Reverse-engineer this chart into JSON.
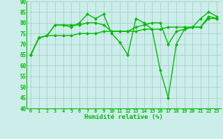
{
  "xlabel": "Humidité relative (%)",
  "ylabel": "",
  "xlim": [
    -0.5,
    23.5
  ],
  "ylim": [
    40,
    90
  ],
  "yticks": [
    40,
    45,
    50,
    55,
    60,
    65,
    70,
    75,
    80,
    85,
    90
  ],
  "xticks": [
    0,
    1,
    2,
    3,
    4,
    5,
    6,
    7,
    8,
    9,
    10,
    11,
    12,
    13,
    14,
    15,
    16,
    17,
    18,
    19,
    20,
    21,
    22,
    23
  ],
  "background_color": "#cceeea",
  "grid_color": "#aacccc",
  "line_color": "#00bb00",
  "line_width": 1.0,
  "marker": "D",
  "marker_size": 2.0,
  "series": [
    [
      65,
      73,
      74,
      79,
      79,
      78,
      80,
      84,
      82,
      84,
      75,
      71,
      65,
      82,
      80,
      77,
      58,
      45,
      70,
      77,
      78,
      82,
      85,
      83
    ],
    [
      65,
      73,
      74,
      79,
      79,
      79,
      79,
      80,
      80,
      79,
      76,
      76,
      76,
      78,
      79,
      80,
      80,
      70,
      76,
      77,
      78,
      78,
      83,
      82
    ],
    [
      65,
      73,
      74,
      74,
      74,
      74,
      75,
      75,
      75,
      76,
      76,
      76,
      76,
      76,
      77,
      77,
      77,
      78,
      78,
      78,
      78,
      78,
      82,
      82
    ]
  ]
}
